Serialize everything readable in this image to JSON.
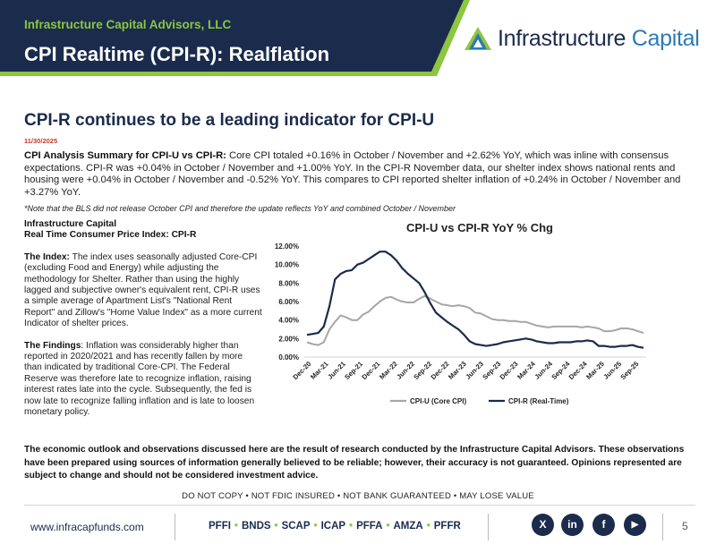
{
  "header": {
    "firm_name": "Infrastructure Capital Advisors, LLC",
    "title": "CPI Realtime (CPI-R): Realflation",
    "logo_text_1": "Infrastructure",
    "logo_text_2": "Capital",
    "navy": "#1a2b4c",
    "green": "#8dc63f"
  },
  "subtitle": "CPI-R continues to be a leading indicator for CPI-U",
  "date": "11/30/2025",
  "summary": {
    "lead": "CPI Analysis Summary for CPI-U vs CPI-R:",
    "body": " Core CPI totaled +0.16% in October / November and +2.62% YoY, which was inline with consensus expectations. CPI-R was +0.04% in October / November and +1.00% YoY. In the CPI-R November data, our shelter index shows national rents and housing were +0.04% in October / November and -0.52% YoY. This compares to CPI reported shelter inflation of +0.24% in October / November and +3.27% YoY.",
    "note": "*Note that the BLS did not release October CPI and therefore the update reflects YoY and combined October / November"
  },
  "left": {
    "heading_1": "Infrastructure Capital",
    "heading_2": "Real Time Consumer Price Index: CPI-R",
    "index_label": "The Index:",
    "index_text": " The index uses seasonally adjusted Core-CPI (excluding Food and Energy) while adjusting the methodology for Shelter. Rather than using the highly lagged and subjective owner's equivalent rent, CPI-R uses a simple average of Apartment List's \"National Rent Report\" and Zillow's \"Home Value Index\" as a more current Indicator of shelter prices.",
    "findings_label": "The Findings",
    "findings_text": ": Inflation was considerably higher than reported in 2020/2021 and has recently fallen by more than indicated by traditional Core-CPI. The Federal Reserve was therefore late to recognize inflation, raising interest rates late into the cycle. Subsequently, the fed is now late to recognize falling inflation and is late to loosen monetary policy."
  },
  "chart_data": {
    "type": "line",
    "title": "CPI-U vs CPI-R YoY % Chg",
    "xlabel": "",
    "ylabel": "",
    "ylim": [
      0,
      12
    ],
    "yticks": [
      "0.00%",
      "2.00%",
      "4.00%",
      "6.00%",
      "8.00%",
      "10.00%",
      "12.00%"
    ],
    "xticks": [
      "Dec-20",
      "Mar-21",
      "Jun-21",
      "Sep-21",
      "Dec-21",
      "Mar-22",
      "Jun-22",
      "Sep-22",
      "Dec-22",
      "Mar-23",
      "Jun-23",
      "Sep-23",
      "Dec-23",
      "Mar-24",
      "Jun-24",
      "Sep-24",
      "Dec-24",
      "Mar-25",
      "Jun-25",
      "Sep-25"
    ],
    "series": [
      {
        "name": "CPI-U (Core CPI)",
        "color": "#a6a6a6",
        "values": [
          1.6,
          1.4,
          1.3,
          1.6,
          3.0,
          3.8,
          4.5,
          4.3,
          4.0,
          4.0,
          4.6,
          4.9,
          5.5,
          6.0,
          6.4,
          6.5,
          6.2,
          6.0,
          5.9,
          5.9,
          6.3,
          6.6,
          6.3,
          6.0,
          5.7,
          5.6,
          5.5,
          5.6,
          5.5,
          5.3,
          4.8,
          4.7,
          4.4,
          4.1,
          4.0,
          4.0,
          3.9,
          3.9,
          3.8,
          3.8,
          3.6,
          3.4,
          3.3,
          3.2,
          3.3,
          3.3,
          3.3,
          3.3,
          3.3,
          3.2,
          3.3,
          3.2,
          3.1,
          2.8,
          2.8,
          2.9,
          3.1,
          3.1,
          3.0,
          2.8,
          2.6
        ]
      },
      {
        "name": "CPI-R (Real-Time)",
        "color": "#1a2b4c",
        "values": [
          2.4,
          2.5,
          2.6,
          3.3,
          5.5,
          8.4,
          9.0,
          9.3,
          9.4,
          10.0,
          10.2,
          10.6,
          11.0,
          11.4,
          11.4,
          11.0,
          10.4,
          9.6,
          9.0,
          8.5,
          8.0,
          7.0,
          5.8,
          4.8,
          4.3,
          3.8,
          3.4,
          3.0,
          2.4,
          1.7,
          1.4,
          1.3,
          1.2,
          1.3,
          1.4,
          1.6,
          1.7,
          1.8,
          1.9,
          2.0,
          1.9,
          1.7,
          1.6,
          1.5,
          1.5,
          1.6,
          1.6,
          1.6,
          1.7,
          1.7,
          1.8,
          1.7,
          1.2,
          1.2,
          1.1,
          1.1,
          1.2,
          1.2,
          1.3,
          1.1,
          1.0
        ]
      }
    ],
    "legend": "bottom"
  },
  "disclaimer": "The economic outlook and observations discussed here are the result of research conducted by the Infrastructure Capital Advisors. These observations have been prepared using sources of information generally believed to be reliable; however, their accuracy is not guaranteed. Opinions represented are subject to change and should not be considered investment advice.",
  "fdic": "DO NOT COPY • NOT FDIC INSURED • NOT BANK GUARANTEED • MAY LOSE VALUE",
  "footer": {
    "website": "www.infracapfunds.com",
    "tickers": [
      "PFFI",
      "BNDS",
      "SCAP",
      "ICAP",
      "PFFA",
      "AMZA",
      "PFFR"
    ],
    "page_number": "5",
    "social": [
      "x-icon",
      "linkedin-icon",
      "facebook-icon",
      "youtube-icon"
    ],
    "social_glyphs": [
      "X",
      "in",
      "f",
      "▶"
    ]
  }
}
